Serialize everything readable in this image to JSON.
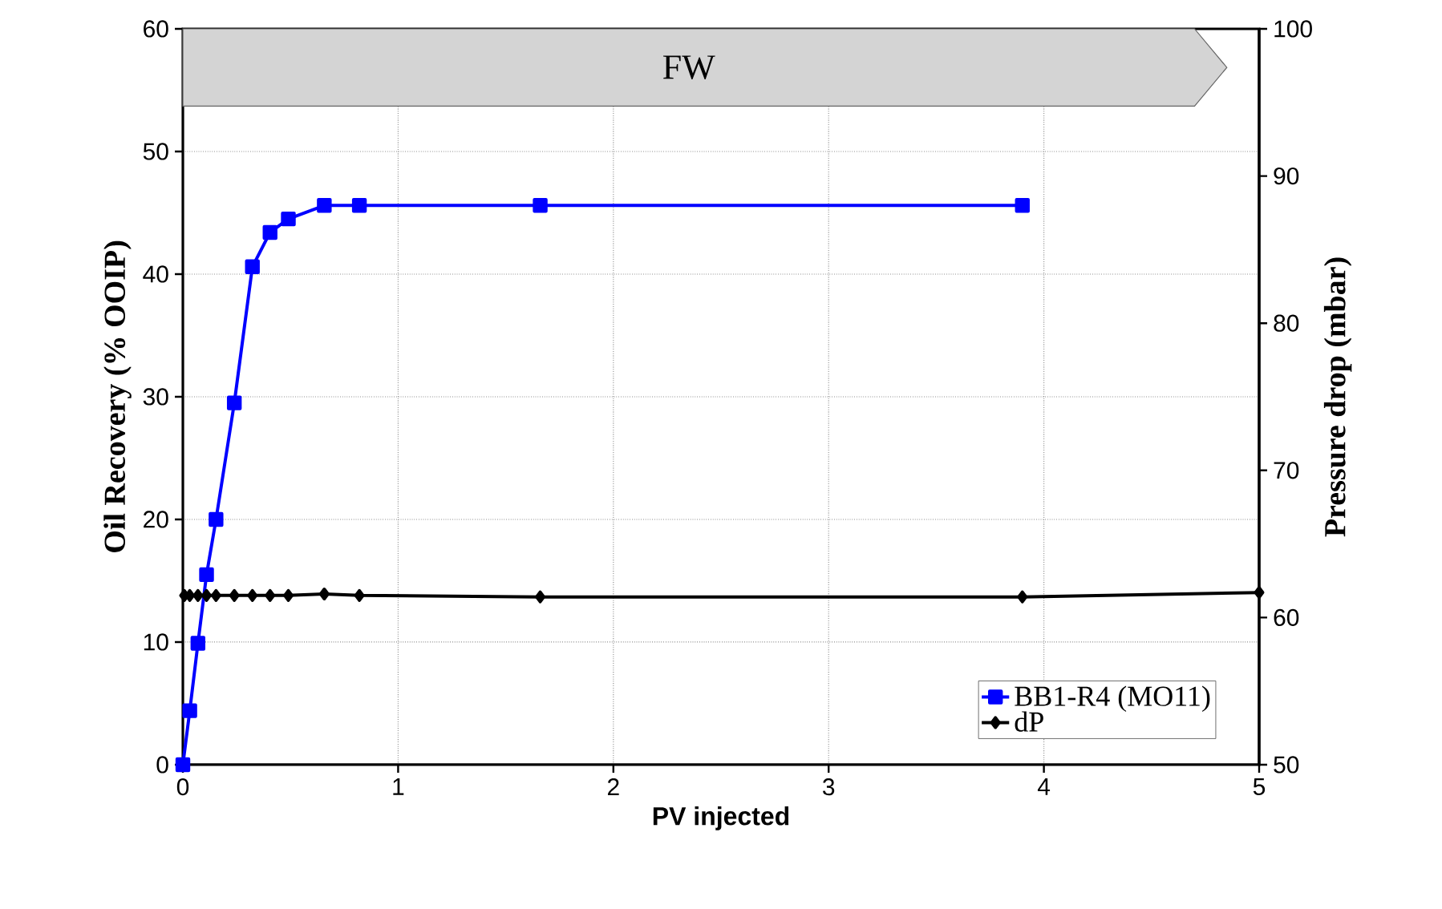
{
  "chart_data": {
    "type": "line",
    "xlabel": "PV injected",
    "ylabel": "Oil Recovery  (% OOIP)",
    "y2label": "Pressure drop (mbar)",
    "xlim": [
      0,
      5
    ],
    "xticks": [
      0,
      1,
      2,
      3,
      4,
      5
    ],
    "ylim": [
      0,
      60
    ],
    "yticks": [
      0,
      10,
      20,
      30,
      40,
      50,
      60
    ],
    "y2lim": [
      50,
      100
    ],
    "y2ticks": [
      50,
      60,
      70,
      80,
      90,
      100
    ],
    "grid": true,
    "legend": "bottom right",
    "line_style": "solid",
    "bands": [
      {
        "axis": "x",
        "from": 0,
        "to": 4.85,
        "label": "FW",
        "color": "#d4d4d4"
      }
    ],
    "series": [
      {
        "name": "BB1-R4 (MO11)",
        "color": "#0000ff",
        "marker": "square",
        "x": [
          0,
          0.032,
          0.07,
          0.11,
          0.154,
          0.239,
          0.323,
          0.405,
          0.49,
          0.657,
          0.82,
          1.66,
          3.9
        ],
        "values": [
          0,
          4.4,
          9.9,
          15.5,
          20.0,
          29.5,
          40.6,
          43.4,
          44.5,
          45.6,
          45.6,
          45.6,
          45.6
        ]
      },
      {
        "name": "dP",
        "color": "#000000",
        "marker": "diamond",
        "axis": "y2",
        "x": [
          0.007,
          0.032,
          0.07,
          0.11,
          0.154,
          0.239,
          0.323,
          0.405,
          0.49,
          0.657,
          0.82,
          1.66,
          3.9,
          5
        ],
        "values": [
          61.5,
          61.5,
          61.5,
          61.5,
          61.5,
          61.5,
          61.5,
          61.5,
          61.5,
          61.6,
          61.5,
          61.4,
          61.4,
          61.7
        ]
      }
    ]
  }
}
